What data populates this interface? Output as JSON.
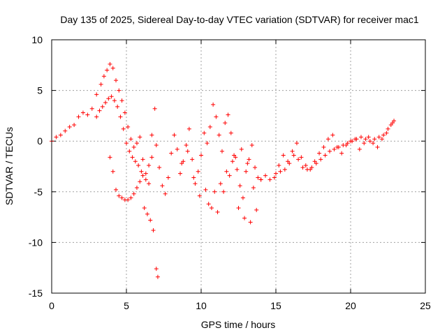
{
  "chart_data": {
    "type": "scatter",
    "title": "Day 135 of 2025, Sidereal Day-to-day VTEC variation (SDTVAR) for receiver mac1",
    "xlabel": "GPS time / hours",
    "ylabel": "SDTVAR / TECUs",
    "xlim": [
      0,
      25
    ],
    "ylim": [
      -15,
      10
    ],
    "xticks": [
      "0",
      "5",
      "10",
      "15",
      "20",
      "25"
    ],
    "yticks": [
      "10",
      "5",
      "0",
      "-5",
      "-10",
      "-15"
    ],
    "grid": true,
    "marker": "+",
    "colors": {
      "series": "#ff0000",
      "grid": "#a0a0a0",
      "axis": "#000000"
    },
    "series": [
      {
        "name": "SDTVAR",
        "x": [
          0.0,
          0.3,
          0.6,
          0.9,
          1.2,
          1.5,
          1.8,
          2.1,
          2.4,
          2.7,
          3.0,
          3.3,
          3.5,
          3.7,
          3.9,
          4.1,
          4.3,
          4.5,
          4.7,
          4.9,
          5.1,
          5.3,
          5.5,
          5.7,
          5.9,
          6.1,
          6.3,
          6.5,
          6.7,
          6.9,
          7.0,
          7.2,
          7.4,
          7.6,
          7.8,
          8.0,
          8.2,
          8.4,
          8.6,
          8.8,
          9.0,
          9.2,
          9.4,
          9.6,
          9.8,
          10.0,
          10.2,
          10.4,
          10.6,
          10.8,
          11.0,
          11.2,
          11.4,
          11.6,
          11.8,
          12.0,
          12.2,
          12.4,
          12.6,
          12.8,
          13.0,
          13.2,
          13.4,
          13.6,
          13.8,
          14.0,
          14.3,
          14.6,
          14.9,
          15.2,
          15.5,
          15.8,
          16.1,
          16.4,
          16.7,
          17.0,
          17.3,
          17.6,
          17.9,
          18.2,
          18.5,
          18.8,
          19.1,
          19.4,
          19.7,
          20.0,
          20.3,
          20.6,
          20.9,
          21.2,
          21.5,
          21.8,
          22.1,
          22.4,
          22.7,
          22.9,
          3.0,
          3.2,
          3.4,
          3.6,
          3.8,
          4.0,
          4.2,
          4.4,
          4.6,
          4.8,
          5.0,
          5.2,
          5.4,
          5.6,
          5.8,
          6.0,
          6.2,
          6.4,
          6.6,
          6.8,
          7.0,
          7.1,
          3.9,
          4.1,
          4.3,
          4.5,
          4.7,
          4.9,
          5.1,
          5.3,
          5.5,
          5.7,
          5.9,
          6.1,
          6.3,
          6.5,
          6.7,
          10.3,
          10.7,
          11.1,
          11.5,
          11.9,
          12.3,
          12.7,
          13.1,
          13.5,
          14.0,
          8.7,
          9.1,
          9.5,
          9.9,
          10.5,
          10.9,
          11.3,
          11.7,
          12.1,
          12.5,
          12.9,
          13.3,
          13.7,
          15.0,
          15.3,
          15.6,
          15.9,
          16.2,
          16.5,
          16.8,
          17.1,
          17.4,
          17.7,
          18.0,
          18.3,
          18.6,
          18.9,
          19.2,
          19.5,
          19.8,
          20.1,
          20.4,
          20.7,
          21.0,
          21.3,
          21.6,
          21.9,
          22.2,
          22.5,
          22.8
        ],
        "y": [
          0.0,
          0.4,
          0.6,
          1.0,
          1.4,
          1.6,
          2.4,
          2.8,
          2.6,
          3.2,
          4.6,
          5.6,
          6.4,
          7.0,
          7.6,
          7.2,
          6.0,
          5.0,
          4.0,
          2.8,
          1.4,
          0.2,
          -0.6,
          -0.2,
          0.4,
          -1.8,
          -3.2,
          -4.2,
          0.6,
          3.2,
          -0.4,
          -2.6,
          -4.4,
          -5.2,
          -3.6,
          -1.2,
          0.6,
          -0.8,
          -3.2,
          -2.0,
          -0.4,
          1.2,
          -1.8,
          -4.2,
          -3.0,
          -1.4,
          0.8,
          -0.2,
          1.4,
          3.6,
          2.4,
          0.6,
          -1.0,
          1.8,
          2.6,
          0.8,
          -1.4,
          -2.8,
          -4.4,
          -5.6,
          -3.0,
          -1.8,
          -0.4,
          -2.6,
          -3.6,
          -3.8,
          -3.4,
          -3.8,
          -3.6,
          -2.4,
          -1.4,
          -2.0,
          -1.0,
          -0.2,
          -1.6,
          -2.4,
          -2.8,
          -2.0,
          -1.2,
          -0.6,
          0.2,
          0.6,
          -0.6,
          -1.2,
          -0.4,
          0.0,
          0.2,
          -0.8,
          -0.2,
          0.4,
          -0.2,
          -0.6,
          0.2,
          0.8,
          1.6,
          2.0,
          2.4,
          3.0,
          3.4,
          3.8,
          4.2,
          4.4,
          4.0,
          3.4,
          2.4,
          1.2,
          -0.2,
          -1.0,
          -1.6,
          -2.0,
          -2.4,
          -3.0,
          -6.6,
          -7.2,
          -7.8,
          -8.8,
          -12.6,
          -13.4,
          -1.6,
          -3.0,
          -4.8,
          -5.4,
          -5.6,
          -5.8,
          -5.8,
          -5.6,
          -5.2,
          -4.6,
          -4.0,
          -3.4,
          -3.8,
          -2.4,
          -1.6,
          -4.8,
          -6.6,
          -7.0,
          -5.0,
          -3.4,
          -1.6,
          -0.8,
          -2.2,
          -4.6,
          -3.8,
          -2.2,
          -1.0,
          -3.6,
          -5.4,
          -6.2,
          -5.0,
          -4.2,
          -3.0,
          -2.0,
          -6.6,
          -7.6,
          -8.0,
          -6.8,
          -3.2,
          -3.0,
          -2.8,
          -2.2,
          -1.4,
          -1.8,
          -2.6,
          -2.8,
          -2.6,
          -2.2,
          -1.8,
          -1.4,
          -1.0,
          -0.8,
          -0.6,
          -0.4,
          -0.2,
          0.0,
          0.2,
          0.4,
          0.2,
          0.0,
          0.2,
          0.4,
          0.6,
          1.2,
          1.8
        ]
      }
    ]
  }
}
